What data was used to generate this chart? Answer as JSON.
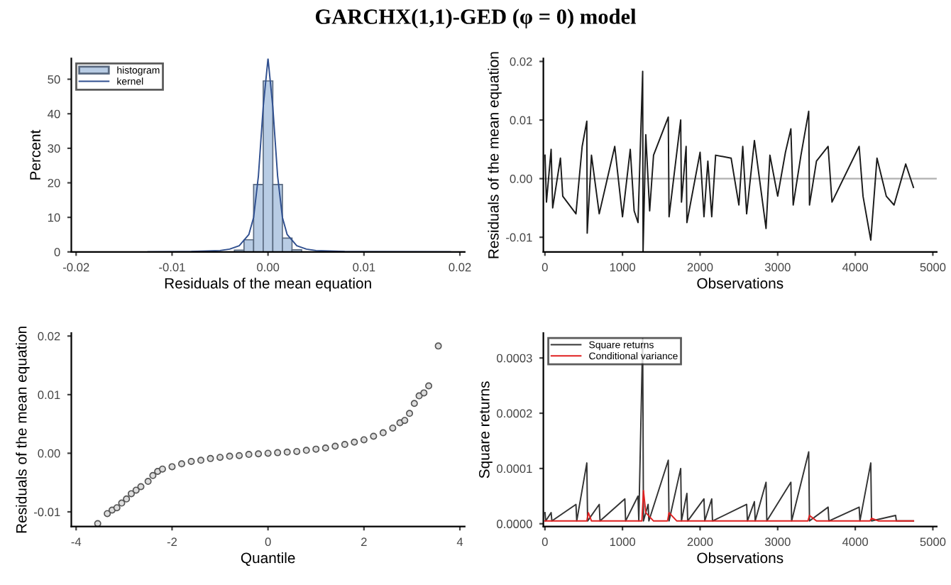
{
  "chart_data": [
    {
      "type": "histogram",
      "title": "GARCHX(1,1)-GED (φ = 0) model",
      "xlabel": "Residuals of the mean equation",
      "ylabel": "Percent",
      "legend": "top left",
      "xlim": [
        -0.0205,
        0.0205
      ],
      "xticks": [
        {
          "value": -0.02,
          "label": "-0.02"
        },
        {
          "value": -0.01,
          "label": "-0.01"
        },
        {
          "value": 0,
          "label": "0.00"
        },
        {
          "value": 0.01,
          "label": "0.01"
        },
        {
          "value": 0.02,
          "label": "0.02"
        }
      ],
      "ylim": [
        0,
        56
      ],
      "yticks": [
        0,
        10,
        20,
        30,
        40,
        50
      ],
      "series": [
        {
          "name": "histogram",
          "type": "histogram",
          "color": "#b8cce4",
          "bins": [
            -0.0055,
            -0.0045,
            -0.0035,
            -0.0025,
            -0.0015,
            -0.0005,
            0.0005,
            0.0015,
            0.0025,
            0.0035,
            0.0045,
            0.0055
          ],
          "values": [
            null,
            null,
            0.5,
            3.5,
            19.5,
            49.5,
            19.5,
            4,
            0.6,
            null,
            null
          ]
        },
        {
          "name": "kernel",
          "type": "line",
          "color": "#2f4f8f",
          "x": [
            -0.0125,
            -0.008,
            -0.005,
            -0.004,
            -0.003,
            -0.002,
            -0.0015,
            -0.001,
            -0.0005,
            0,
            0.0005,
            0.001,
            0.0015,
            0.002,
            0.003,
            0.004,
            0.005,
            0.008,
            0.019
          ],
          "values": [
            0,
            0.1,
            0.4,
            0.8,
            1.8,
            5,
            10,
            22,
            42,
            56,
            42,
            22,
            10,
            5,
            1.8,
            0.8,
            0.4,
            0.1,
            0
          ]
        }
      ]
    },
    {
      "type": "line",
      "xlabel": "Observations",
      "ylabel": "Residuals of the mean equation",
      "xlim": [
        -20,
        5050
      ],
      "xticks": [
        0,
        1000,
        2000,
        3000,
        4000,
        5000
      ],
      "ylim": [
        -0.0125,
        0.0205
      ],
      "yticks": [
        {
          "value": -0.01,
          "label": "-0.01"
        },
        {
          "value": 0,
          "label": "0.00"
        },
        {
          "value": 0.01,
          "label": "0.01"
        },
        {
          "value": 0.02,
          "label": "0.02"
        }
      ],
      "ref_lines": [
        {
          "axis": "y",
          "value": 0,
          "color": "#b0b0b0"
        }
      ],
      "series": [
        {
          "color": "#1a1a1a",
          "x": [
            1,
            20,
            80,
            100,
            200,
            230,
            400,
            480,
            540,
            545,
            600,
            700,
            900,
            1000,
            1100,
            1150,
            1200,
            1260,
            1265,
            1300,
            1350,
            1400,
            1590,
            1600,
            1750,
            1760,
            1820,
            1830,
            2000,
            2050,
            2100,
            2150,
            2200,
            2400,
            2500,
            2550,
            2600,
            2700,
            2850,
            2900,
            3000,
            3100,
            3170,
            3200,
            3300,
            3400,
            3410,
            3500,
            3650,
            3700,
            4050,
            4100,
            4200,
            4280,
            4400,
            4500,
            4650,
            4750
          ],
          "values": [
            0.004,
            -0.004,
            0.005,
            -0.005,
            0.0035,
            -0.003,
            -0.006,
            0.0055,
            0.0098,
            -0.0093,
            0.004,
            -0.006,
            0.0055,
            -0.0065,
            0.005,
            -0.0055,
            -0.0075,
            0.0183,
            -0.0125,
            0.0075,
            -0.0055,
            0.004,
            0.0105,
            -0.0065,
            0.01,
            -0.004,
            0.0055,
            -0.0075,
            0.0045,
            -0.0065,
            0.003,
            -0.0065,
            0.004,
            0.0035,
            -0.0045,
            0.0055,
            -0.006,
            0.0065,
            -0.0085,
            0.004,
            -0.003,
            0.0045,
            0.0085,
            -0.0045,
            0.004,
            0.0115,
            -0.0045,
            0.003,
            0.0055,
            -0.004,
            0.0055,
            -0.003,
            -0.0105,
            0.0035,
            -0.003,
            -0.0045,
            0.0025,
            -0.0015
          ]
        }
      ]
    },
    {
      "type": "scatter",
      "xlabel": "Quantile",
      "ylabel": "Residuals of the mean equation",
      "marker": "circle",
      "xlim": [
        -4.1,
        4.1
      ],
      "xticks": [
        -4,
        -2,
        0,
        2,
        4
      ],
      "ylim": [
        -0.0125,
        0.0205
      ],
      "yticks": [
        {
          "value": -0.01,
          "label": "-0.01"
        },
        {
          "value": 0,
          "label": "0.00"
        },
        {
          "value": 0.01,
          "label": "0.01"
        },
        {
          "value": 0.02,
          "label": "0.02"
        }
      ],
      "series": [
        {
          "color": "#555555",
          "x": [
            -3.55,
            -3.35,
            -3.25,
            -3.15,
            -3.05,
            -2.95,
            -2.85,
            -2.75,
            -2.65,
            -2.5,
            -2.4,
            -2.3,
            -2.2,
            -2.0,
            -1.8,
            -1.6,
            -1.4,
            -1.2,
            -1.0,
            -0.8,
            -0.6,
            -0.4,
            -0.2,
            0,
            0.2,
            0.4,
            0.6,
            0.8,
            1.0,
            1.2,
            1.4,
            1.6,
            1.8,
            2.0,
            2.2,
            2.4,
            2.6,
            2.75,
            2.85,
            2.95,
            3.05,
            3.15,
            3.25,
            3.35,
            3.55
          ],
          "values": [
            -0.012,
            -0.0103,
            -0.0097,
            -0.0093,
            -0.0085,
            -0.0078,
            -0.0069,
            -0.0063,
            -0.0057,
            -0.0048,
            -0.0038,
            -0.0031,
            -0.0027,
            -0.0023,
            -0.0018,
            -0.0014,
            -0.0012,
            -0.0009,
            -0.0007,
            -0.0005,
            -0.0004,
            -0.0002,
            -0.0001,
            0,
            0.0001,
            0.0002,
            0.0003,
            0.0005,
            0.0007,
            0.0009,
            0.0012,
            0.0015,
            0.0019,
            0.0023,
            0.0029,
            0.0035,
            0.0043,
            0.0052,
            0.0056,
            0.0068,
            0.0085,
            0.0098,
            0.0103,
            0.0115,
            0.0183
          ]
        }
      ]
    },
    {
      "type": "line",
      "xlabel": "Observations",
      "ylabel": "Square returns",
      "legend": "top left",
      "xlim": [
        -20,
        5050
      ],
      "xticks": [
        0,
        1000,
        2000,
        3000,
        4000,
        5000
      ],
      "ylim": [
        -5e-06,
        0.000345
      ],
      "yticks": [
        {
          "value": 0,
          "label": "0.0000"
        },
        {
          "value": 0.0001,
          "label": "0.0001"
        },
        {
          "value": 0.0002,
          "label": "0.0002"
        },
        {
          "value": 0.0003,
          "label": "0.0003"
        }
      ],
      "series": [
        {
          "name": "Square returns",
          "color": "#333333",
          "x": [
            1,
            10,
            80,
            90,
            400,
            410,
            540,
            550,
            700,
            710,
            1030,
            1040,
            1200,
            1210,
            1260,
            1270,
            1330,
            1340,
            1590,
            1600,
            1750,
            1760,
            1830,
            1840,
            2050,
            2060,
            2150,
            2160,
            2600,
            2610,
            2700,
            2710,
            2850,
            2860,
            3170,
            3180,
            3400,
            3410,
            3650,
            3660,
            4050,
            4060,
            4200,
            4210,
            4520,
            4530,
            4750
          ],
          "values": [
            2e-05,
            5e-06,
            2e-05,
            5e-06,
            3.5e-05,
            5e-06,
            0.00011,
            5e-06,
            3.5e-05,
            5e-06,
            4.5e-05,
            5e-06,
            5e-05,
            5e-06,
            0.000335,
            5e-06,
            3.5e-05,
            5e-06,
            0.000115,
            5e-06,
            0.0001,
            5e-06,
            5.5e-05,
            5e-06,
            4.5e-05,
            5e-06,
            4.5e-05,
            5e-06,
            3.5e-05,
            5e-06,
            4e-05,
            5e-06,
            7.5e-05,
            5e-06,
            7.5e-05,
            5e-06,
            0.00013,
            5e-06,
            3e-05,
            5e-06,
            3e-05,
            5e-06,
            0.00011,
            5e-06,
            1.5e-05,
            5e-06,
            5e-06
          ]
        },
        {
          "name": "Conditional variance",
          "color": "#e02020",
          "x": [
            1,
            540,
            560,
            600,
            1250,
            1270,
            1300,
            1400,
            1580,
            1600,
            1700,
            3390,
            3410,
            3500,
            4190,
            4210,
            4300,
            4750
          ],
          "values": [
            5e-06,
            5e-06,
            2e-05,
            5e-06,
            5e-06,
            6e-05,
            2e-05,
            5e-06,
            5e-06,
            2e-05,
            5e-06,
            5e-06,
            1.5e-05,
            5e-06,
            5e-06,
            1e-05,
            5e-06,
            5e-06
          ]
        }
      ]
    }
  ]
}
